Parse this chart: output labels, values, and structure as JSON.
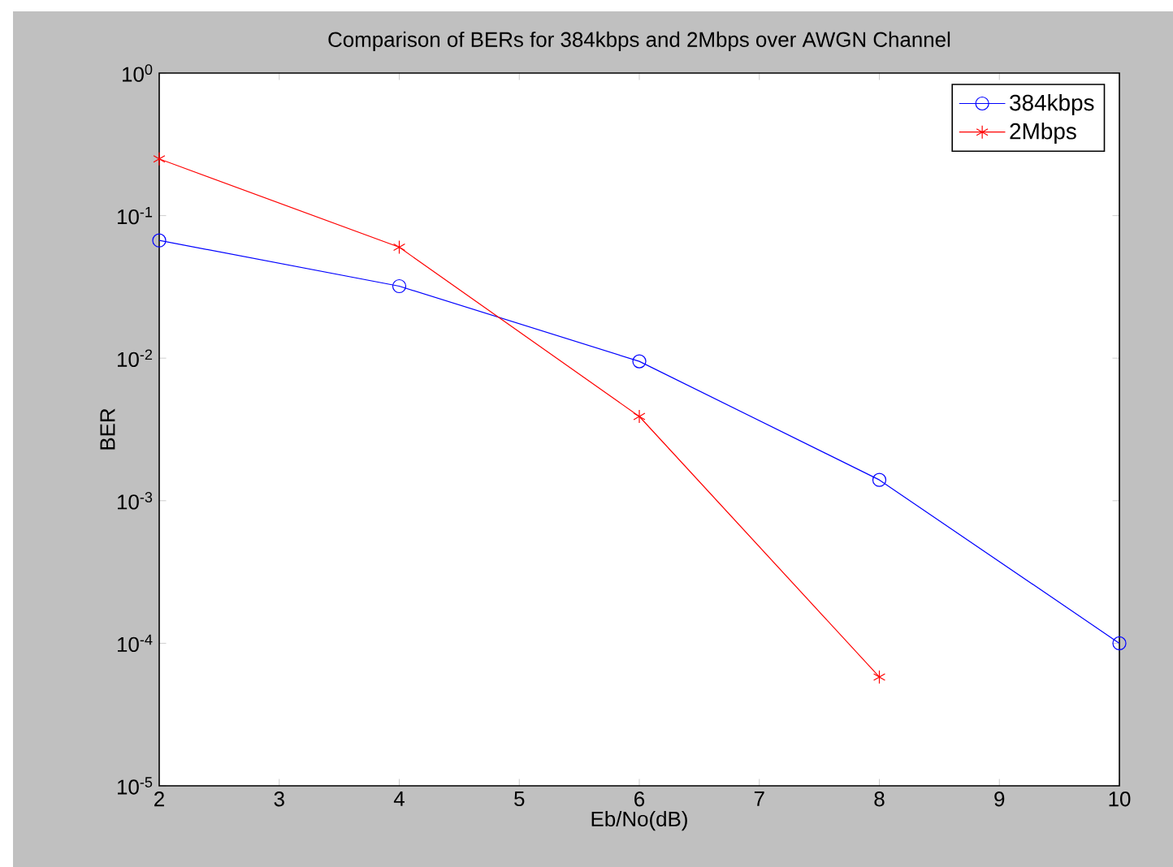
{
  "chart_data": {
    "type": "line",
    "title": "Comparison of BERs for 384kbps and 2Mbps over AWGN Channel",
    "xlabel": "Eb/No(dB)",
    "ylabel": "BER",
    "log": "y",
    "x": [
      2,
      4,
      6,
      8,
      10
    ],
    "series": [
      {
        "name": "384kbps",
        "color": "#0000ff",
        "marker": "circle",
        "values": [
          0.067,
          0.032,
          0.0095,
          0.0014,
          0.0001
        ]
      },
      {
        "name": "2Mbps",
        "color": "#ff0000",
        "marker": "cross",
        "x": [
          2,
          4,
          6,
          8
        ],
        "values": [
          0.25,
          0.06,
          0.0039,
          5.8e-05
        ]
      }
    ],
    "xlim": [
      2,
      10
    ],
    "xticks": [
      2,
      3,
      4,
      5,
      6,
      7,
      8,
      9,
      10
    ],
    "ylim": [
      1e-05,
      1
    ],
    "yticks": [
      {
        "value": 1e-05,
        "label": "10$^{-5}$"
      },
      {
        "value": 0.0001,
        "label": "10$^{-4}$"
      },
      {
        "value": 0.001,
        "label": "10$^{-3}$"
      },
      {
        "value": 0.01,
        "label": "10$^{-2}$"
      },
      {
        "value": 0.1,
        "label": "10$^{-1}$"
      },
      {
        "value": 1,
        "label": "10$^{0}$"
      }
    ],
    "grid": false,
    "legend": "top right",
    "line_style": "solid"
  }
}
